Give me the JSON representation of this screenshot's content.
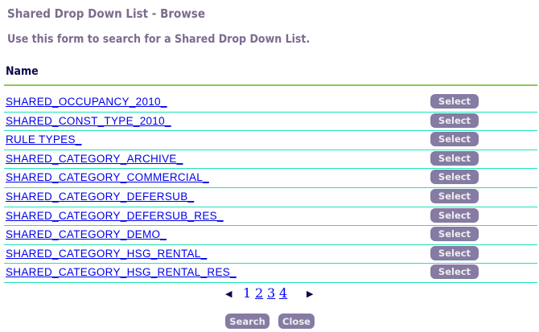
{
  "page": {
    "title": "Shared Drop Down List - Browse",
    "subtitle": "Use this form to search for a Shared Drop Down List."
  },
  "table": {
    "header": "Name",
    "select_label": "Select",
    "rows": [
      "SHARED_OCCUPANCY_2010_",
      "SHARED_CONST_TYPE_2010_",
      "RULE TYPES_",
      "SHARED_CATEGORY_ARCHIVE_",
      "SHARED_CATEGORY_COMMERCIAL_",
      "SHARED_CATEGORY_DEFERSUB_",
      "SHARED_CATEGORY_DEFERSUB_RES_",
      "SHARED_CATEGORY_DEMO_",
      "SHARED_CATEGORY_HSG_RENTAL_",
      "SHARED_CATEGORY_HSG_RENTAL_RES_"
    ]
  },
  "pager": {
    "pages": [
      "1",
      "2",
      "3",
      "4"
    ],
    "current": "1",
    "prev_icon": "triangle-left",
    "next_icon": "triangle-right"
  },
  "actions": {
    "search": "Search",
    "close": "Close"
  }
}
